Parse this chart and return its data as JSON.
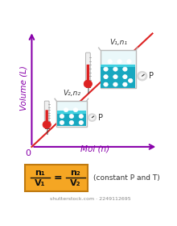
{
  "bg_color": "#ffffff",
  "axis_color": "#8800aa",
  "line_color": "#dd2222",
  "ylabel": "Volume (L)",
  "xlabel": "Mol (n)",
  "formula_box_color": "#f5a623",
  "formula_border_color": "#c07a10",
  "constant_text": "(constant P and T)",
  "label1": "V₁,n₁",
  "label2": "V₂,n₂",
  "thermometer_color_liquid": "#dd2222",
  "thermometer_tube_color": "#f0f0f0",
  "beaker_outline_color": "#bbbbbb",
  "beaker_glass_color": "#eaf8fa",
  "beaker_liquid_color": "#18a8c0",
  "beaker_liquid_top_color": "#40d0e0",
  "bubble_color": "#ffffff",
  "bubble_edge_color": "#cccccc",
  "gauge_color": "#d8d8d8",
  "gauge_inner_color": "#f5f5f5",
  "text_color": "#333333",
  "watermark_color": "#888888",
  "shutterstock_text": "shutterstock.com · 2249112695"
}
